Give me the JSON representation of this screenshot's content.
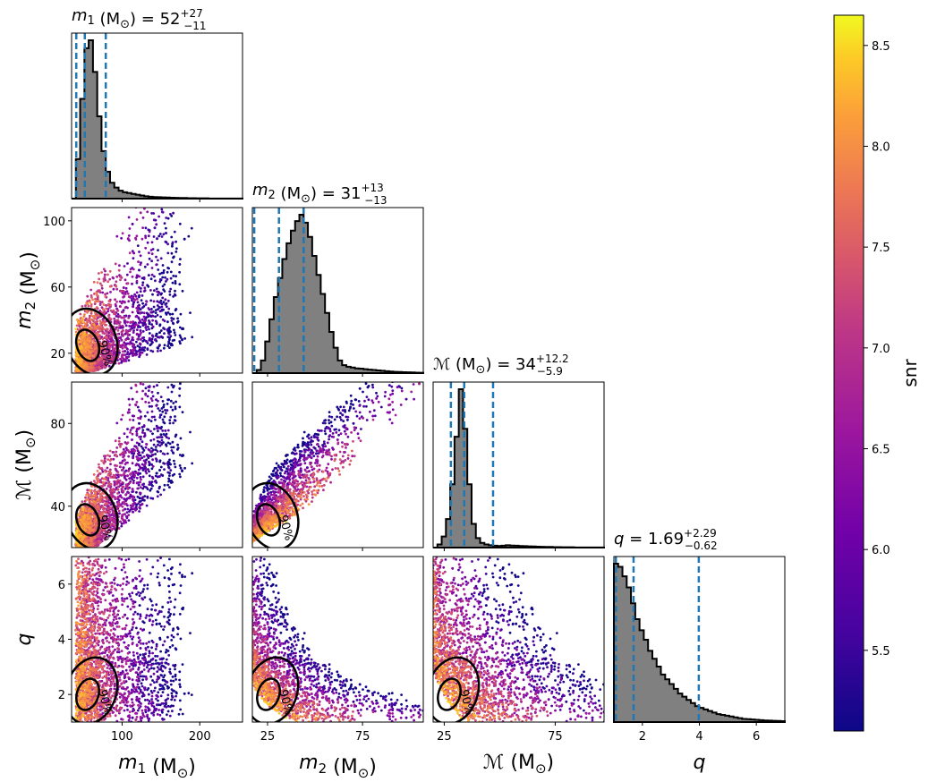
{
  "chart_data": {
    "type": "corner",
    "colorbar": {
      "label": "snr",
      "range": [
        5.1,
        8.65
      ],
      "ticks": [
        "5.5",
        "6.0",
        "6.5",
        "7.0",
        "7.5",
        "8.0",
        "8.5"
      ],
      "tick_values": [
        5.5,
        6.0,
        6.5,
        7.0,
        7.5,
        8.0,
        8.5
      ],
      "colormap": "plasma"
    },
    "parameters": [
      {
        "key": "m1",
        "label_italic": "m",
        "label_sub": "1",
        "label_unit": " (M",
        "label_unit_sub": "⊙",
        "label_unit_close": ")",
        "range": [
          35,
          255
        ],
        "ticks": [
          "100",
          "200"
        ],
        "tick_values": [
          100,
          200
        ],
        "title_prefix": " = 52",
        "title_sup": "+27",
        "title_sub": "−11",
        "median": 52,
        "low": 41,
        "high": 79,
        "hist": [
          0,
          0.25,
          0.63,
          0.95,
          1.0,
          0.8,
          0.52,
          0.3,
          0.17,
          0.1,
          0.07,
          0.05,
          0.04,
          0.035,
          0.03,
          0.025,
          0.02,
          0.015,
          0.012,
          0.01,
          0.009,
          0.008,
          0.007,
          0.006,
          0.005,
          0.004,
          0.004,
          0.003,
          0.003,
          0.002,
          0.002,
          0.002,
          0.001,
          0.001,
          0.001,
          0.001,
          0.001,
          0.001,
          0.001,
          0.001
        ]
      },
      {
        "key": "m2",
        "label_italic": "m",
        "label_sub": "2",
        "label_unit": " (M",
        "label_unit_sub": "⊙",
        "label_unit_close": ")",
        "range": [
          8,
          108
        ],
        "ticks": [
          "20",
          "60",
          "100"
        ],
        "tick_values": [
          20,
          60,
          100
        ],
        "tick_labels_bottom": [
          "25",
          "75"
        ],
        "tick_values_bottom": [
          25,
          75
        ],
        "range_bottom": [
          17,
          107
        ],
        "title_prefix": " = 31",
        "title_sup": "+13",
        "title_sub": "−13",
        "median": 31,
        "low": 18,
        "high": 44,
        "hist": [
          0,
          0.02,
          0.08,
          0.2,
          0.34,
          0.48,
          0.6,
          0.72,
          0.82,
          0.9,
          0.96,
          1.0,
          0.95,
          0.86,
          0.74,
          0.62,
          0.5,
          0.38,
          0.26,
          0.16,
          0.08,
          0.05,
          0.04,
          0.035,
          0.03,
          0.028,
          0.025,
          0.022,
          0.02,
          0.017,
          0.015,
          0.012,
          0.01,
          0.008,
          0.007,
          0.006,
          0.005,
          0.004,
          0.003,
          0.002
        ]
      },
      {
        "key": "mchirp",
        "label_italic": "ℳ",
        "label_sub": "",
        "label_unit": " (M",
        "label_unit_sub": "⊙",
        "label_unit_close": ")",
        "range": [
          20,
          100
        ],
        "ticks": [
          "40",
          "80"
        ],
        "tick_values": [
          40,
          80
        ],
        "tick_labels_bottom": [
          "25",
          "75"
        ],
        "tick_values_bottom": [
          25,
          75
        ],
        "range_bottom": [
          20,
          97
        ],
        "title_prefix": " = 34",
        "title_sup": "+12.2",
        "title_sub": "−5.9",
        "median": 34,
        "low": 28,
        "high": 47,
        "hist": [
          0,
          0.02,
          0.07,
          0.18,
          0.4,
          0.7,
          1.0,
          0.75,
          0.4,
          0.15,
          0.06,
          0.03,
          0.02,
          0.015,
          0.012,
          0.01,
          0.012,
          0.015,
          0.013,
          0.012,
          0.01,
          0.009,
          0.008,
          0.007,
          0.006,
          0.005,
          0.004,
          0.004,
          0.003,
          0.003,
          0.002,
          0.002,
          0.002,
          0.001,
          0.001,
          0.001,
          0.001,
          0.001,
          0.001,
          0.001
        ]
      },
      {
        "key": "q",
        "label_italic": "q",
        "label_sub": "",
        "label_unit": "",
        "label_unit_sub": "",
        "label_unit_close": "",
        "range": [
          1,
          7
        ],
        "ticks": [
          "2",
          "4",
          "6"
        ],
        "tick_values": [
          2,
          4,
          6
        ],
        "title_prefix": " = 1.69",
        "title_sup": "+2.29",
        "title_sub": "−0.62",
        "median": 1.69,
        "low": 1.07,
        "high": 3.98,
        "hist": [
          1.0,
          0.98,
          0.92,
          0.85,
          0.75,
          0.65,
          0.58,
          0.52,
          0.45,
          0.4,
          0.35,
          0.3,
          0.27,
          0.24,
          0.21,
          0.18,
          0.16,
          0.14,
          0.12,
          0.1,
          0.09,
          0.08,
          0.07,
          0.06,
          0.05,
          0.045,
          0.04,
          0.035,
          0.03,
          0.025,
          0.02,
          0.018,
          0.016,
          0.014,
          0.012,
          0.01,
          0.009,
          0.008,
          0.007,
          0.006
        ]
      }
    ],
    "contour_labels": [
      "90%",
      "50%"
    ],
    "median_line_color": "#1f77b4",
    "hist_fill_color": "#808080"
  }
}
